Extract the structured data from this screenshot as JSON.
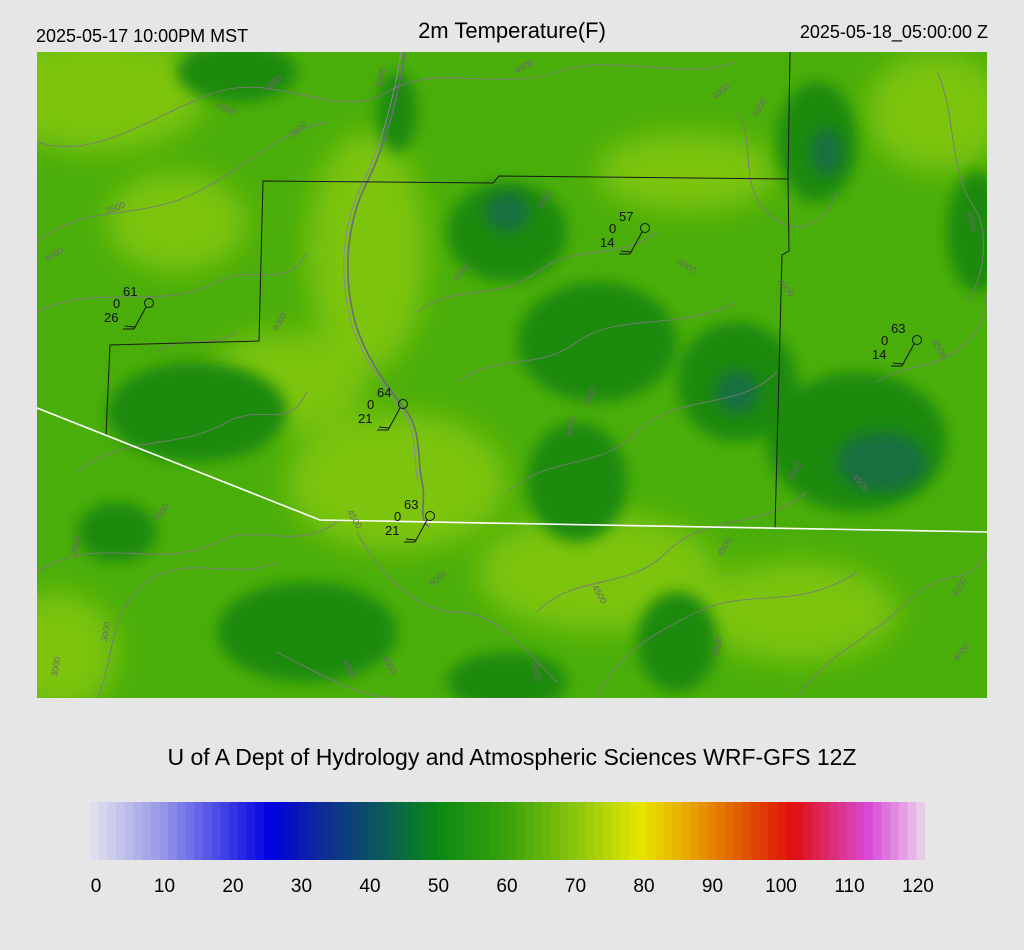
{
  "header": {
    "local_time": "2025-05-17 10:00PM MST",
    "title": "2m Temperature(F)",
    "utc_time": "2025-05-18_05:00:00 Z"
  },
  "credit": "U of A Dept of Hydrology and Atmospheric Sciences WRF-GFS 12Z",
  "colorbar": {
    "min": 0,
    "max": 120,
    "ticks": [
      "0",
      "10",
      "20",
      "30",
      "40",
      "50",
      "60",
      "70",
      "80",
      "90",
      "100",
      "110",
      "120"
    ],
    "color_stops": [
      {
        "value": 0,
        "color": "#e2e2ee"
      },
      {
        "value": 10,
        "color": "#9a9ae8"
      },
      {
        "value": 20,
        "color": "#3a3ae8"
      },
      {
        "value": 26,
        "color": "#0000e0"
      },
      {
        "value": 33,
        "color": "#0f2a9a"
      },
      {
        "value": 42,
        "color": "#0a5a5a"
      },
      {
        "value": 50,
        "color": "#0a8a14"
      },
      {
        "value": 60,
        "color": "#3aa20a"
      },
      {
        "value": 70,
        "color": "#8cc60c"
      },
      {
        "value": 79,
        "color": "#e6e600"
      },
      {
        "value": 86,
        "color": "#e8a600"
      },
      {
        "value": 93,
        "color": "#e06000"
      },
      {
        "value": 101,
        "color": "#e00e0e"
      },
      {
        "value": 112,
        "color": "#d84ad8"
      },
      {
        "value": 120,
        "color": "#ecd6ec"
      }
    ]
  },
  "map": {
    "colors": {
      "field_light": "#7cc40c",
      "field_mid": "#4aae0a",
      "field_dark": "#1e8a10",
      "field_darkest": "#147040",
      "contour": "#7a7a7a",
      "boundary": "#1a1a1a",
      "border": "#ffffff"
    },
    "contour_labels": [
      "4000",
      "4000",
      "3500",
      "3000",
      "3500",
      "4000",
      "4000",
      "4000",
      "4000",
      "3000",
      "5000",
      "4000",
      "4000",
      "4000",
      "3500",
      "4000",
      "4500",
      "4500",
      "4500",
      "4500",
      "4000",
      "4000",
      "4500",
      "4500",
      "3000",
      "3000",
      "4000",
      "4000",
      "4500",
      "4500",
      "4000",
      "4500",
      "3500",
      "4500"
    ],
    "stations": [
      {
        "temp": "61",
        "wind": "0",
        "dewpt": "26"
      },
      {
        "temp": "57",
        "wind": "0",
        "dewpt": "14"
      },
      {
        "temp": "63",
        "wind": "0",
        "dewpt": "14"
      },
      {
        "temp": "64",
        "wind": "0",
        "dewpt": "21"
      },
      {
        "temp": "63",
        "wind": "0",
        "dewpt": "21"
      }
    ]
  }
}
